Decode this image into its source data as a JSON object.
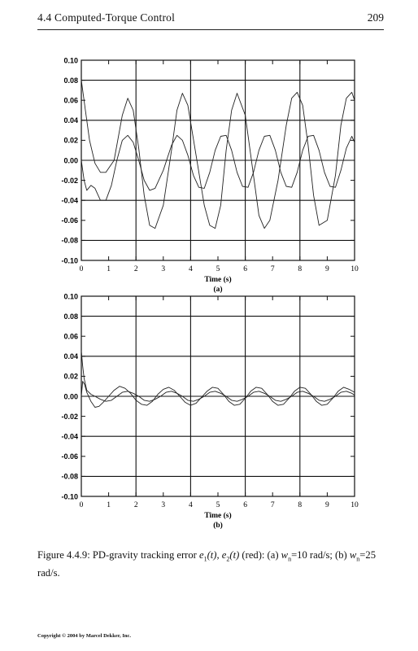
{
  "header": {
    "section_title": "4.4 Computed-Torque Control",
    "page_number": "209"
  },
  "chart_data": [
    {
      "type": "line",
      "panel_label": "(a)",
      "xlabel": "Time (s)",
      "ylabel": "",
      "xlim": [
        0,
        10
      ],
      "ylim": [
        -0.1,
        0.1
      ],
      "xticks": [
        "0",
        "1",
        "2",
        "3",
        "4",
        "5",
        "6",
        "7",
        "8",
        "9",
        "10"
      ],
      "yticks": [
        "0.10",
        "0.08",
        "0.06",
        "0.04",
        "0.02",
        "0.00",
        "-0.02",
        "-0.04",
        "-0.06",
        "-0.08",
        "-0.10"
      ],
      "grid": "major lines at x=0,2,4,6,8,10 and y=-0.08,-0.04,0.00,0.04,0.08",
      "series": [
        {
          "x": [
            0,
            0.15,
            0.3,
            0.5,
            0.7,
            0.9,
            1.2,
            1.5,
            1.7,
            1.9,
            2.1,
            2.3,
            2.5,
            2.7,
            3.0,
            3.3,
            3.5,
            3.7,
            3.9,
            4.2,
            4.5,
            4.7,
            4.9,
            5.1,
            5.3,
            5.5,
            5.7,
            6.0,
            6.3,
            6.5,
            6.7,
            6.9,
            7.2,
            7.5,
            7.7,
            7.9,
            8.1,
            8.3,
            8.5,
            8.7,
            9.0,
            9.3,
            9.5,
            9.7,
            9.9,
            10
          ],
          "y": [
            0.08,
            0.05,
            0.02,
            -0.003,
            -0.012,
            -0.012,
            0.0,
            0.045,
            0.062,
            0.05,
            0.012,
            -0.035,
            -0.065,
            -0.068,
            -0.045,
            0.01,
            0.05,
            0.067,
            0.055,
            0.005,
            -0.045,
            -0.065,
            -0.068,
            -0.045,
            0.01,
            0.05,
            0.067,
            0.045,
            -0.015,
            -0.055,
            -0.068,
            -0.06,
            -0.02,
            0.035,
            0.062,
            0.068,
            0.055,
            0.015,
            -0.035,
            -0.065,
            -0.06,
            -0.015,
            0.035,
            0.062,
            0.068,
            0.06
          ]
        },
        {
          "x": [
            0,
            0.1,
            0.2,
            0.35,
            0.5,
            0.7,
            0.9,
            1.1,
            1.3,
            1.5,
            1.7,
            1.9,
            2.1,
            2.3,
            2.5,
            2.7,
            3.0,
            3.3,
            3.5,
            3.7,
            3.9,
            4.1,
            4.3,
            4.5,
            4.7,
            4.9,
            5.1,
            5.3,
            5.5,
            5.7,
            5.9,
            6.1,
            6.3,
            6.5,
            6.7,
            6.9,
            7.1,
            7.3,
            7.5,
            7.7,
            7.9,
            8.1,
            8.3,
            8.5,
            8.7,
            8.9,
            9.1,
            9.3,
            9.5,
            9.7,
            9.9,
            10
          ],
          "y": [
            0.0,
            -0.02,
            -0.03,
            -0.025,
            -0.028,
            -0.04,
            -0.04,
            -0.025,
            0.0,
            0.02,
            0.025,
            0.018,
            0.0,
            -0.02,
            -0.03,
            -0.028,
            -0.01,
            0.015,
            0.025,
            0.02,
            0.005,
            -0.015,
            -0.027,
            -0.028,
            -0.012,
            0.01,
            0.024,
            0.025,
            0.01,
            -0.012,
            -0.026,
            -0.027,
            -0.012,
            0.01,
            0.024,
            0.025,
            0.01,
            -0.012,
            -0.026,
            -0.027,
            -0.012,
            0.01,
            0.024,
            0.025,
            0.01,
            -0.012,
            -0.026,
            -0.027,
            -0.01,
            0.012,
            0.024,
            0.018
          ]
        }
      ]
    },
    {
      "type": "line",
      "panel_label": "(b)",
      "xlabel": "Time (s)",
      "ylabel": "",
      "xlim": [
        0,
        10
      ],
      "ylim": [
        -0.1,
        0.1
      ],
      "xticks": [
        "0",
        "1",
        "2",
        "3",
        "4",
        "5",
        "6",
        "7",
        "8",
        "9",
        "10"
      ],
      "yticks": [
        "0.10",
        "0.08",
        "0.06",
        "0.04",
        "0.02",
        "0.00",
        "-0.02",
        "-0.04",
        "-0.06",
        "-0.08",
        "-0.10"
      ],
      "grid": "major lines at x=0,2,4,6,8,10 and y=-0.08,-0.04,0.00,0.04,0.08",
      "series": [
        {
          "x": [
            0,
            0.05,
            0.1,
            0.2,
            0.35,
            0.5,
            0.7,
            0.9,
            1.1,
            1.3,
            1.5,
            1.7,
            1.9,
            2.1,
            2.3,
            2.5,
            2.7,
            2.9,
            3.1,
            3.3,
            3.5,
            3.7,
            3.9,
            4.1,
            4.3,
            4.5,
            4.7,
            4.9,
            5.1,
            5.3,
            5.5,
            5.7,
            5.9,
            6.1,
            6.3,
            6.5,
            6.7,
            6.9,
            7.1,
            7.3,
            7.5,
            7.7,
            7.9,
            8.1,
            8.3,
            8.5,
            8.7,
            8.9,
            9.1,
            9.3,
            9.5,
            9.7,
            9.9,
            10
          ],
          "y": [
            0.045,
            0.03,
            0.018,
            0.006,
            0.002,
            0.0,
            -0.003,
            -0.005,
            -0.004,
            0.0,
            0.004,
            0.005,
            0.003,
            0.0,
            -0.004,
            -0.005,
            -0.003,
            0.0,
            0.004,
            0.005,
            0.003,
            0.0,
            -0.004,
            -0.005,
            -0.003,
            0.0,
            0.004,
            0.005,
            0.003,
            0.0,
            -0.004,
            -0.005,
            -0.003,
            0.0,
            0.004,
            0.005,
            0.003,
            0.0,
            -0.004,
            -0.005,
            -0.003,
            0.0,
            0.004,
            0.005,
            0.003,
            0.0,
            -0.004,
            -0.005,
            -0.003,
            0.0,
            0.004,
            0.005,
            0.003,
            0.001
          ]
        },
        {
          "x": [
            0,
            0.05,
            0.12,
            0.2,
            0.35,
            0.5,
            0.65,
            0.8,
            1.0,
            1.2,
            1.4,
            1.6,
            1.8,
            2.0,
            2.2,
            2.4,
            2.6,
            2.8,
            3.0,
            3.2,
            3.4,
            3.6,
            3.8,
            4.0,
            4.2,
            4.4,
            4.6,
            4.8,
            5.0,
            5.2,
            5.4,
            5.6,
            5.8,
            6.0,
            6.2,
            6.4,
            6.6,
            6.8,
            7.0,
            7.2,
            7.4,
            7.6,
            7.8,
            8.0,
            8.2,
            8.4,
            8.6,
            8.8,
            9.0,
            9.2,
            9.4,
            9.6,
            9.8,
            10
          ],
          "y": [
            0.0,
            0.015,
            0.012,
            0.004,
            -0.005,
            -0.011,
            -0.01,
            -0.006,
            0.0,
            0.006,
            0.01,
            0.008,
            0.003,
            -0.004,
            -0.008,
            -0.009,
            -0.005,
            0.002,
            0.007,
            0.009,
            0.006,
            0.0,
            -0.006,
            -0.009,
            -0.007,
            -0.001,
            0.005,
            0.009,
            0.008,
            0.002,
            -0.005,
            -0.009,
            -0.008,
            -0.002,
            0.005,
            0.009,
            0.008,
            0.002,
            -0.005,
            -0.009,
            -0.008,
            -0.002,
            0.005,
            0.009,
            0.008,
            0.002,
            -0.005,
            -0.009,
            -0.008,
            -0.002,
            0.005,
            0.009,
            0.007,
            0.004
          ]
        }
      ]
    }
  ],
  "caption": {
    "label": "Figure 4.4.9: PD-gravity tracking error",
    "e1": "e",
    "e1_sub": "1",
    "e1_arg": "(t)",
    "sep1": ", ",
    "e2": "e",
    "e2_sub": "2",
    "e2_arg": "(t)",
    "red_note": " (red): (a) ",
    "wn_a_sym": "w",
    "wn_sub": "n",
    "wn_a_val": "=10 rad/s; (b) ",
    "wn_b_sym": "w",
    "wn_b_val": "=25 rad/s."
  },
  "footer": {
    "copyright": "Copyright © 2004 by Marcel Dekker, Inc."
  }
}
